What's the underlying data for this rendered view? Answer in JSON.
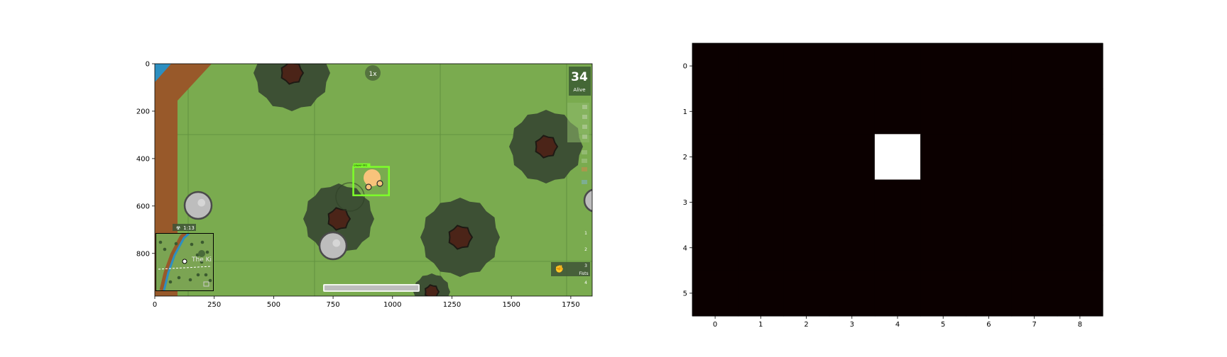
{
  "chart_data": [
    {
      "type": "image",
      "title": "",
      "xlabel": "",
      "ylabel": "",
      "xlim": [
        0,
        1840
      ],
      "ylim": [
        980,
        0
      ],
      "xticks": [
        0,
        250,
        500,
        750,
        1000,
        1250,
        1500,
        1750
      ],
      "yticks": [
        0,
        200,
        400,
        600,
        800
      ],
      "game_hud": {
        "alive_count": "34",
        "alive_label": "Alive",
        "timer_text": "1:13",
        "minimap_place": "The Ki",
        "player_tag": "player-001",
        "zoom_badge": "1x",
        "weapon_slots": [
          "1",
          "2",
          "3",
          "4"
        ],
        "slot_3_label": "Fists"
      },
      "detection_box": {
        "label": "player",
        "x0": 835,
        "y0": 435,
        "x1": 985,
        "y1": 555,
        "color": "#7dff2a"
      },
      "colors": {
        "grass": "#7aab4f",
        "dirt_road": "#98592a",
        "water": "#2c8fc1",
        "bush": "#3d5034",
        "trunk": "#4b2418",
        "rock": "#bdbdbd",
        "player": "#f8c37b"
      }
    },
    {
      "type": "heatmap",
      "title": "",
      "xlabel": "",
      "ylabel": "",
      "rows": 6,
      "cols": 9,
      "xticks": [
        0,
        1,
        2,
        3,
        4,
        5,
        6,
        7,
        8
      ],
      "yticks": [
        0,
        1,
        2,
        3,
        4,
        5
      ],
      "values": [
        [
          0,
          0,
          0,
          0,
          0,
          0,
          0,
          0,
          0
        ],
        [
          0,
          0,
          0,
          0,
          0,
          0,
          0,
          0,
          0
        ],
        [
          0,
          0,
          0,
          0,
          1,
          0,
          0,
          0,
          0
        ],
        [
          0,
          0,
          0,
          0,
          0,
          0,
          0,
          0,
          0
        ],
        [
          0,
          0,
          0,
          0,
          0,
          0,
          0,
          0,
          0
        ],
        [
          0,
          0,
          0,
          0,
          0,
          0,
          0,
          0,
          0
        ]
      ],
      "colormap": {
        "low": "#0b0000",
        "high": "#ffffff"
      }
    }
  ]
}
